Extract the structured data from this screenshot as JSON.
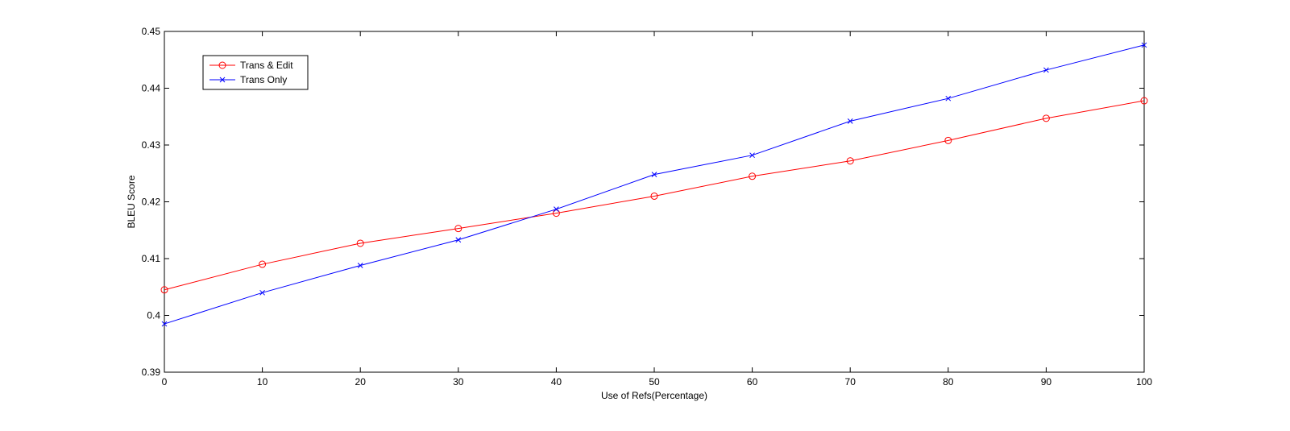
{
  "chart_data": {
    "type": "line",
    "title": "",
    "xlabel": "Use of Refs(Percentage)",
    "ylabel": "BLEU Score",
    "xlim": [
      0,
      100
    ],
    "ylim": [
      0.39,
      0.45
    ],
    "xticks": [
      0,
      10,
      20,
      30,
      40,
      50,
      60,
      70,
      80,
      90,
      100
    ],
    "yticks": [
      0.39,
      0.4,
      0.41,
      0.42,
      0.43,
      0.44,
      0.45
    ],
    "xtick_labels": [
      "0",
      "10",
      "20",
      "30",
      "40",
      "50",
      "60",
      "70",
      "80",
      "90",
      "100"
    ],
    "ytick_labels": [
      "0.39",
      "0.4",
      "0.41",
      "0.42",
      "0.43",
      "0.44",
      "0.45"
    ],
    "grid": false,
    "legend_position": "top-left",
    "x": [
      0,
      10,
      20,
      30,
      40,
      50,
      60,
      70,
      80,
      90,
      100
    ],
    "series": [
      {
        "name": "Trans & Edit",
        "color": "#ff0000",
        "marker": "circle",
        "values": [
          0.4045,
          0.409,
          0.4127,
          0.4153,
          0.418,
          0.421,
          0.4245,
          0.4272,
          0.4308,
          0.4347,
          0.4378
        ]
      },
      {
        "name": "Trans Only",
        "color": "#0000ff",
        "marker": "x",
        "values": [
          0.3985,
          0.404,
          0.4088,
          0.4133,
          0.4187,
          0.4248,
          0.4282,
          0.4342,
          0.4382,
          0.4432,
          0.4476
        ]
      }
    ]
  }
}
